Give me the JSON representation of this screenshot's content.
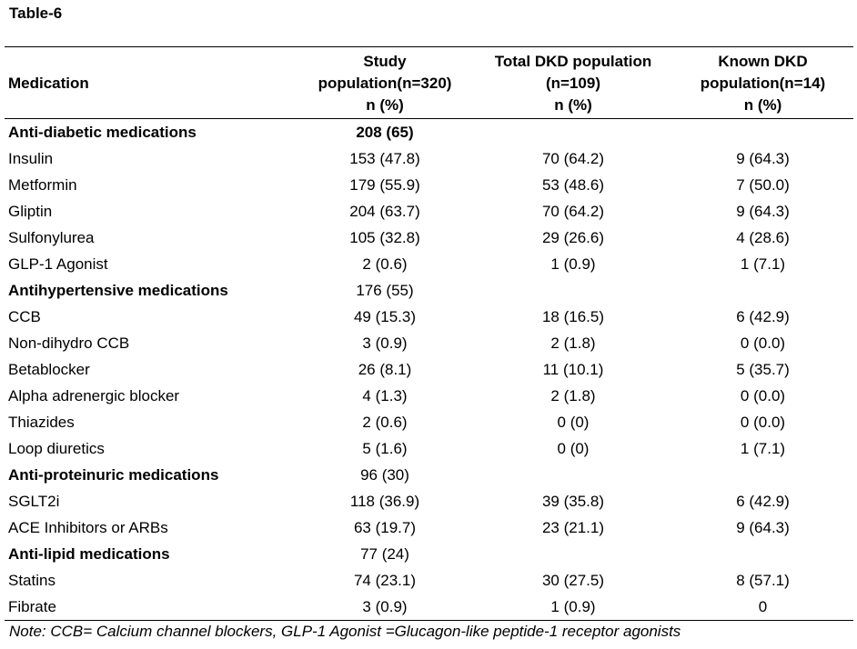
{
  "title": "Table-6",
  "header": {
    "medication": "Medication",
    "study": [
      "Study",
      "population(n=320)",
      "n (%)"
    ],
    "total": [
      "Total DKD population",
      "(n=109)",
      "n (%)"
    ],
    "known": [
      "Known DKD",
      "population(n=14)",
      "n (%)"
    ]
  },
  "rows": [
    {
      "label": "Anti-diabetic medications",
      "group": true,
      "study": "208 (65)",
      "total": "",
      "known": ""
    },
    {
      "label": "Insulin",
      "study": "153 (47.8)",
      "total": "70 (64.2)",
      "known": "9 (64.3)"
    },
    {
      "label": "Metformin",
      "study": "179 (55.9)",
      "total": "53 (48.6)",
      "known": "7 (50.0)"
    },
    {
      "label": "Gliptin",
      "study": "204 (63.7)",
      "total": "70 (64.2)",
      "known": "9 (64.3)"
    },
    {
      "label": "Sulfonylurea",
      "study": "105 (32.8)",
      "total": "29 (26.6)",
      "known": "4 (28.6)"
    },
    {
      "label": "GLP-1 Agonist",
      "study": "2 (0.6)",
      "total": "1 (0.9)",
      "known": "1 (7.1)"
    },
    {
      "label": "Antihypertensive medications",
      "group": true,
      "study": "176 (55)",
      "total": "",
      "known": ""
    },
    {
      "label": "CCB",
      "study": "49 (15.3)",
      "total": "18 (16.5)",
      "known": "6 (42.9)"
    },
    {
      "label": "Non-dihydro CCB",
      "study": "3 (0.9)",
      "total": "2 (1.8)",
      "known": "0 (0.0)"
    },
    {
      "label": "Betablocker",
      "study": "26 (8.1)",
      "total": "11 (10.1)",
      "known": "5 (35.7)"
    },
    {
      "label": "Alpha adrenergic blocker",
      "study": "4 (1.3)",
      "total": "2 (1.8)",
      "known": "0 (0.0)"
    },
    {
      "label": "Thiazides",
      "study": "2 (0.6)",
      "total": "0 (0)",
      "known": "0 (0.0)"
    },
    {
      "label": "Loop diuretics",
      "study": "5 (1.6)",
      "total": "0 (0)",
      "known": "1 (7.1)"
    },
    {
      "label": "Anti-proteinuric medications",
      "group": true,
      "study": "96 (30)",
      "total": "",
      "known": ""
    },
    {
      "label": "SGLT2i",
      "study": "118 (36.9)",
      "total": "39 (35.8)",
      "known": "6 (42.9)"
    },
    {
      "label": "ACE Inhibitors or ARBs",
      "study": "63 (19.7)",
      "total": "23 (21.1)",
      "known": "9 (64.3)"
    },
    {
      "label": "Anti-lipid medications",
      "group": true,
      "study": "77 (24)",
      "total": "",
      "known": ""
    },
    {
      "label": "Statins",
      "study": "74 (23.1)",
      "total": "30 (27.5)",
      "known": "8 (57.1)"
    },
    {
      "label": "Fibrate",
      "study": "3 (0.9)",
      "total": "1 (0.9)",
      "known": "0"
    }
  ],
  "note": "Note: CCB= Calcium channel blockers, GLP-1 Agonist =Glucagon-like peptide-1 receptor agonists"
}
